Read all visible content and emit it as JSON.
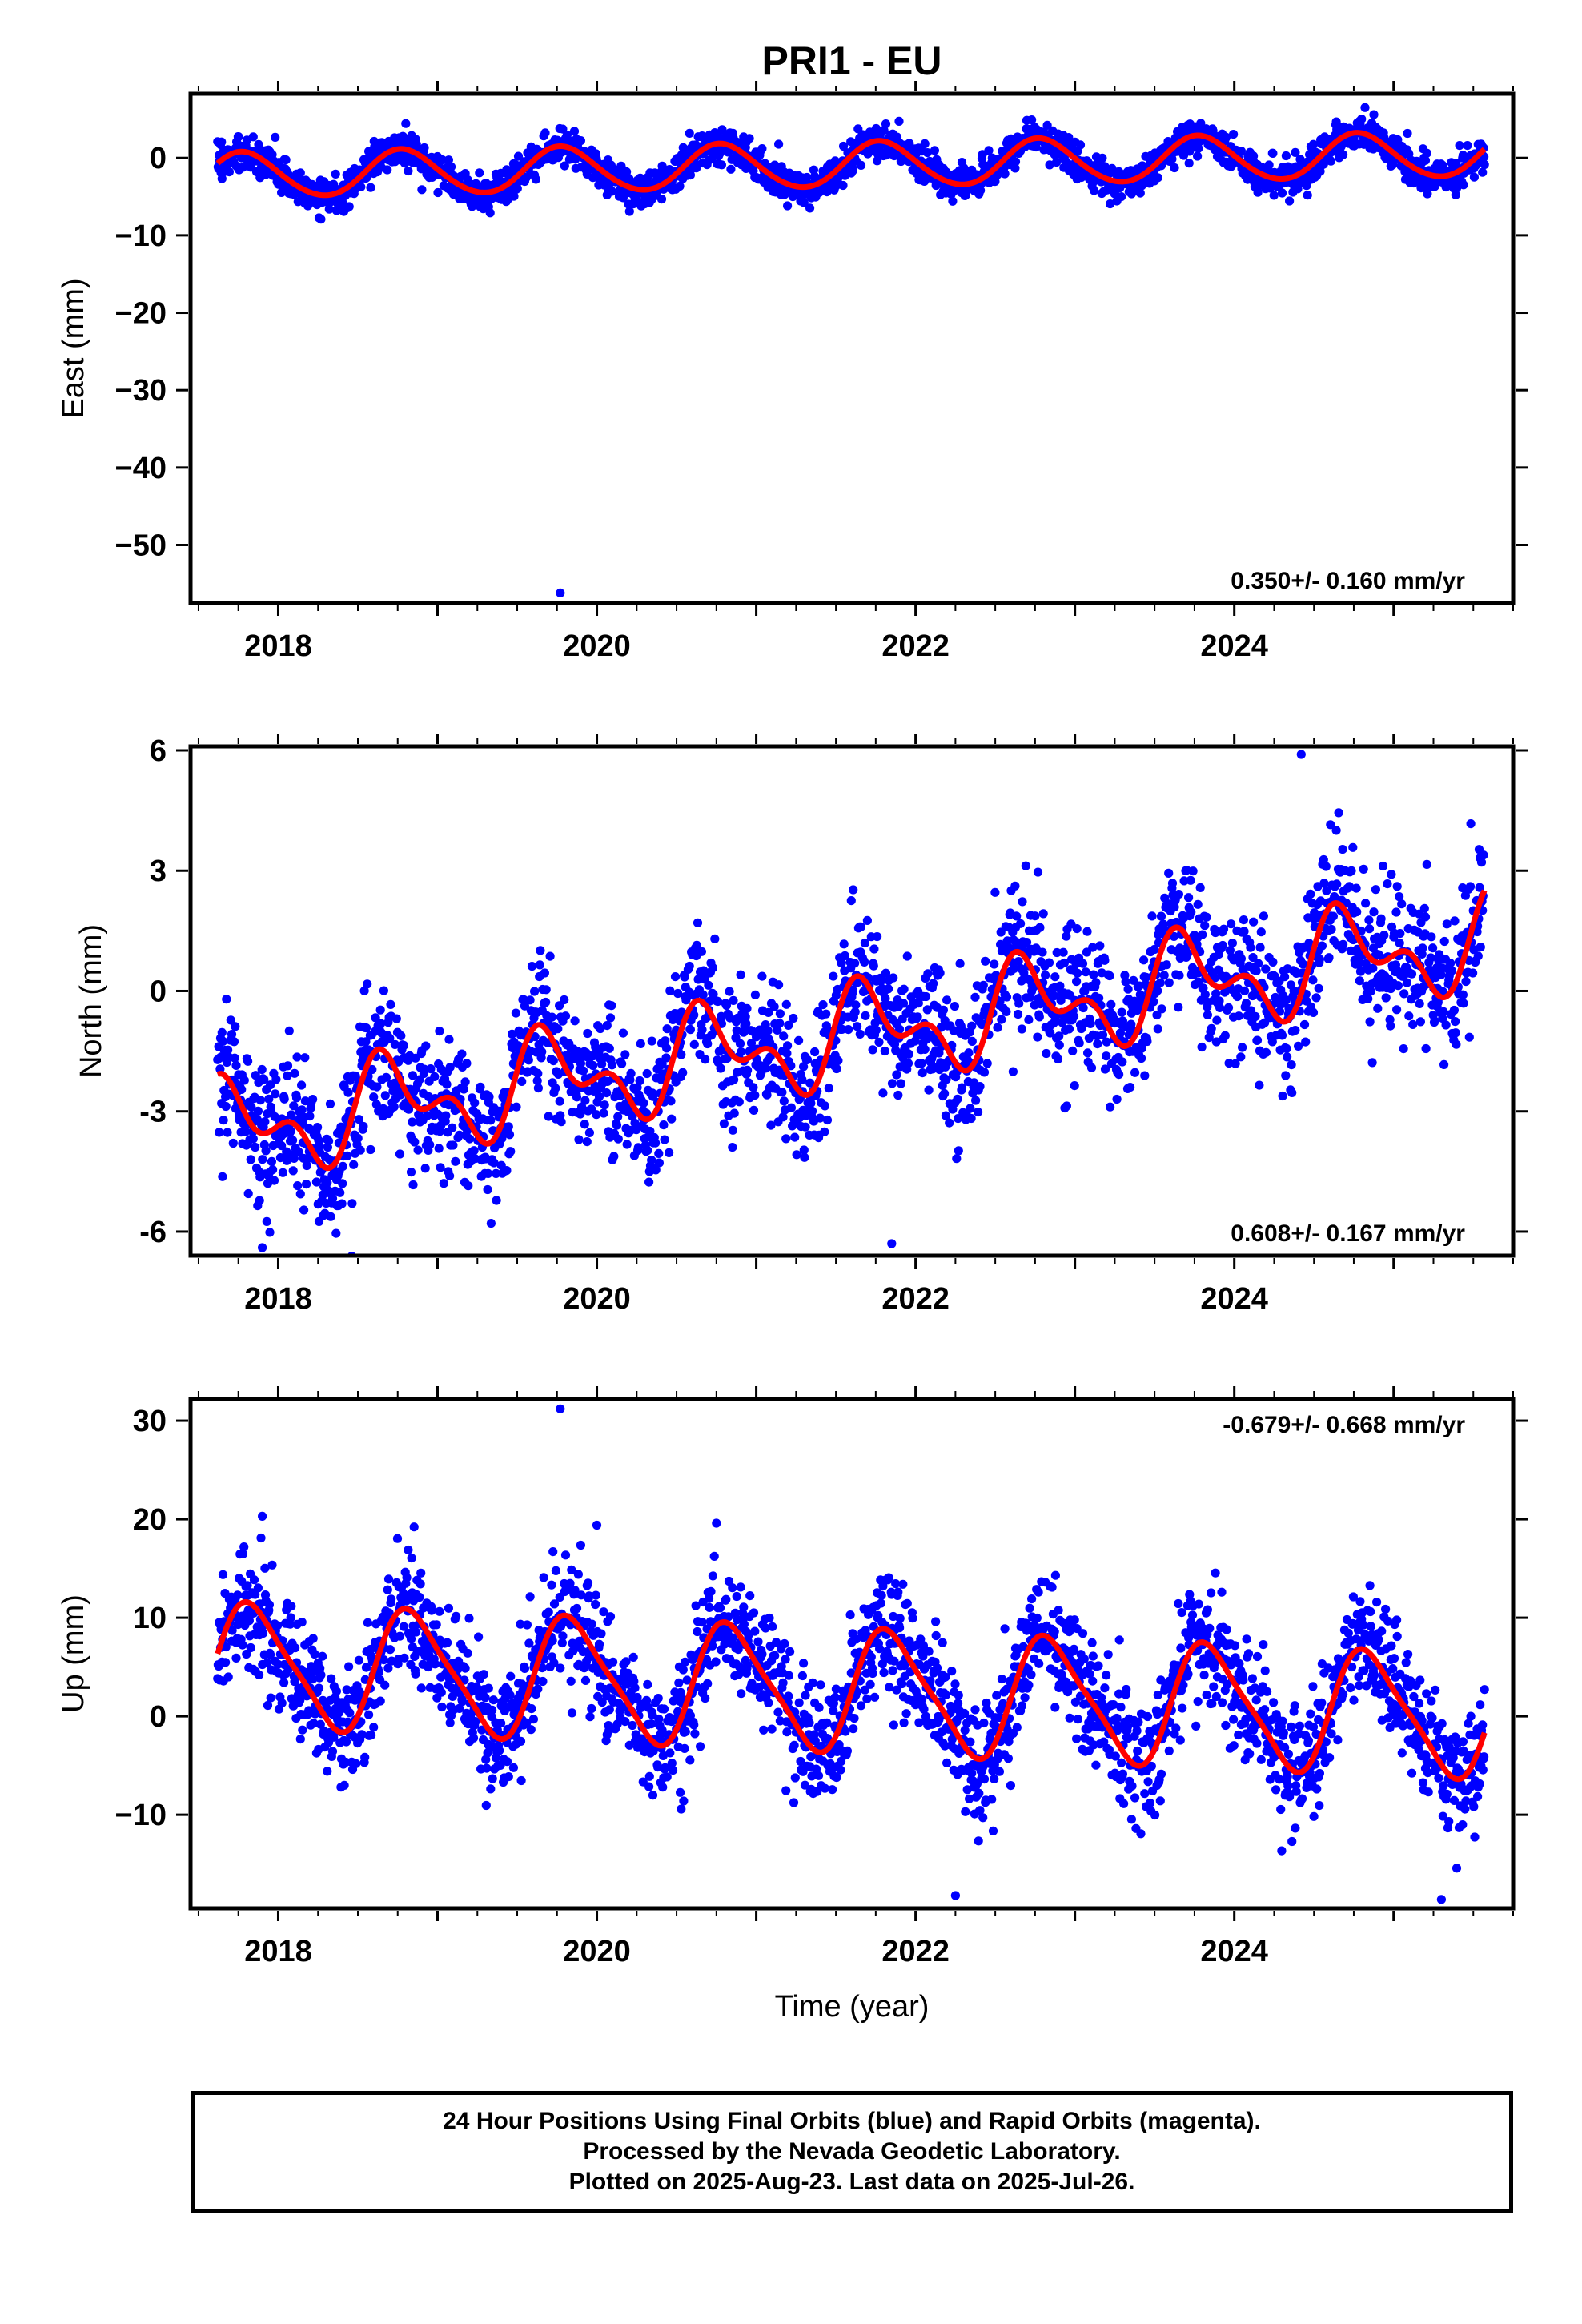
{
  "chart_data": [
    {
      "type": "scatter",
      "title": "PRI1 - EU",
      "xlabel": "",
      "ylabel": "East (mm)",
      "xlim": [
        2017.45,
        2025.75
      ],
      "ylim": [
        -57.5,
        8.3
      ],
      "x_ticks": [
        2018,
        2020,
        2022,
        2024
      ],
      "x_tick_labels": [
        "2018",
        "2020",
        "2022",
        "2024"
      ],
      "y_ticks": [
        0,
        -10,
        -20,
        -30,
        -40,
        -50
      ],
      "y_tick_labels": [
        "0",
        "−10",
        "−20",
        "−30",
        "−40",
        "−50"
      ],
      "rate_label": "0.350+/- 0.160 mm/yr",
      "rate_position": "bottom-right",
      "series": [
        {
          "kind": "points",
          "color": "#0000ff",
          "x_start": 2017.62,
          "x_end": 2025.57,
          "model": {
            "offset": -0.9,
            "trend": 0.35,
            "annual": 2.9,
            "annual_phase": 0.53,
            "semiannual": 0.2,
            "semiannual_phase": 0.1,
            "noise": 1.1
          },
          "outliers": [
            [
              2019.77,
              -56.2
            ]
          ]
        },
        {
          "kind": "line",
          "color": "#ff0000",
          "x_start": 2017.62,
          "x_end": 2025.57,
          "model": {
            "offset": -0.9,
            "trend": 0.35,
            "annual": 2.9,
            "annual_phase": 0.53,
            "semiannual": 0.2,
            "semiannual_phase": 0.1
          }
        }
      ]
    },
    {
      "type": "scatter",
      "title": "",
      "xlabel": "",
      "ylabel": "North (mm)",
      "xlim": [
        2017.45,
        2025.75
      ],
      "ylim": [
        -6.6,
        6.1
      ],
      "x_ticks": [
        2018,
        2020,
        2022,
        2024
      ],
      "x_tick_labels": [
        "2018",
        "2020",
        "2022",
        "2024"
      ],
      "y_ticks": [
        6,
        3,
        0,
        -3,
        -6
      ],
      "y_tick_labels": [
        "6",
        "3",
        "0",
        "-3",
        "-6"
      ],
      "rate_label": "0.608+/- 0.167 mm/yr",
      "rate_position": "bottom-right",
      "series": [
        {
          "kind": "points",
          "color": "#0000ff",
          "x_start": 2017.62,
          "x_end": 2025.57,
          "model": {
            "offset": -1.1,
            "trend": 0.608,
            "annual": 0.95,
            "annual_phase": 0.46,
            "semiannual": 0.65,
            "semiannual_phase": 0.48,
            "noise": 0.85
          },
          "outliers": [
            [
              2021.85,
              -6.3
            ],
            [
              2024.42,
              5.9
            ],
            [
              2017.9,
              -6.4
            ]
          ]
        },
        {
          "kind": "line",
          "color": "#ff0000",
          "x_start": 2017.62,
          "x_end": 2025.57,
          "model": {
            "offset": -1.1,
            "trend": 0.608,
            "annual": 0.95,
            "annual_phase": 0.46,
            "semiannual": 0.65,
            "semiannual_phase": 0.48
          }
        }
      ]
    },
    {
      "type": "scatter",
      "title": "",
      "xlabel": "Time (year)",
      "ylabel": "Up (mm)",
      "xlim": [
        2017.45,
        2025.75
      ],
      "ylim": [
        -19.5,
        32.2
      ],
      "x_ticks": [
        2018,
        2020,
        2022,
        2024
      ],
      "x_tick_labels": [
        "2018",
        "2020",
        "2022",
        "2024"
      ],
      "y_ticks": [
        30,
        20,
        10,
        0,
        -10
      ],
      "y_tick_labels": [
        "30",
        "20",
        "10",
        "0",
        "−10"
      ],
      "rate_label": "-0.679+/- 0.668 mm/yr",
      "rate_position": "top-right",
      "series": [
        {
          "kind": "points",
          "color": "#0000ff",
          "x_start": 2017.62,
          "x_end": 2025.57,
          "model": {
            "offset": 2.6,
            "trend": -0.679,
            "annual": 6.0,
            "annual_phase": 0.6,
            "semiannual": 1.2,
            "semiannual_phase": 0.1,
            "noise": 3.0
          },
          "outliers": [
            [
              2019.77,
              31.2
            ],
            [
              2017.9,
              20.3
            ],
            [
              2020.0,
              19.4
            ],
            [
              2020.75,
              19.6
            ],
            [
              2022.25,
              -18.2
            ],
            [
              2025.3,
              -18.6
            ]
          ]
        },
        {
          "kind": "line",
          "color": "#ff0000",
          "x_start": 2017.62,
          "x_end": 2025.57,
          "model": {
            "offset": 2.6,
            "trend": -0.679,
            "annual": 6.0,
            "annual_phase": 0.6,
            "semiannual": 1.2,
            "semiannual_phase": 0.1
          }
        }
      ]
    }
  ],
  "caption": {
    "line1": "24 Hour Positions Using Final Orbits (blue) and Rapid Orbits (magenta).",
    "line2": "Processed by the Nevada Geodetic Laboratory.",
    "line3": "Plotted on 2025-Aug-23. Last data on 2025-Jul-26."
  }
}
